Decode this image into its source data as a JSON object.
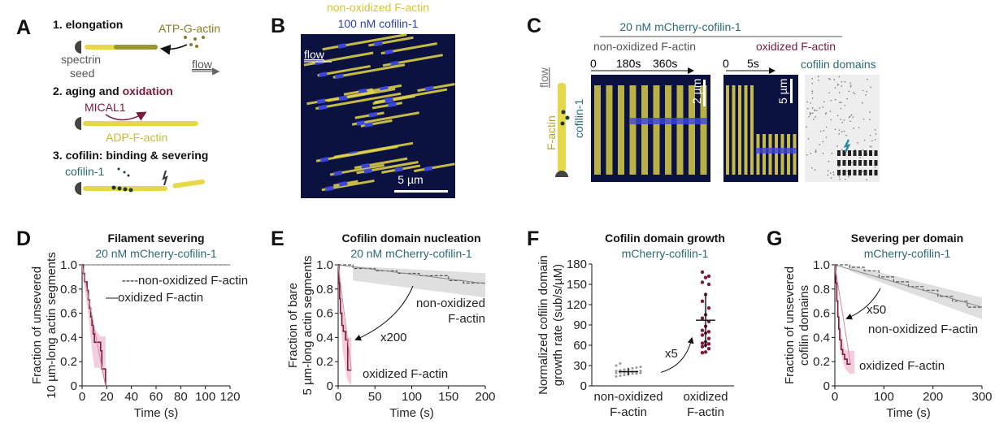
{
  "colors": {
    "yellow": "#e6d84a",
    "olive": "#8a7d1e",
    "oxidized": "#7a1a3c",
    "oxidizedBand": "#f2c4d6",
    "teal": "#2b6a73",
    "gray": "#666666",
    "grayBand": "#d9d9d9",
    "blue": "#3b47d6",
    "kymoBg": "#0b1240"
  },
  "panels": {
    "A": {
      "label": "A",
      "step1": "1. elongation",
      "atp": "ATP-G-actin",
      "spectrin": "spectrin",
      "seed": "seed",
      "flow": "flow",
      "step2a": "2. aging and ",
      "step2b": "oxidation",
      "mical": "MICAL1",
      "adp": "ADP-F-actin",
      "step3": "3. cofilin: binding & severing",
      "cofilin": "cofilin-1"
    },
    "B": {
      "label": "B",
      "title1": "non-oxidized F-actin",
      "title2": "100 nM cofilin-1",
      "flow": "flow",
      "scale": "5 µm"
    },
    "C": {
      "label": "C",
      "title": "20 nM mCherry-cofilin-1",
      "nonox": "non-oxidized F-actin",
      "ox": "oxidized F-actin",
      "flow": "flow",
      "factin": "F-actin",
      "cofilin": "cofilin-1",
      "t0": "0",
      "t180": "180s",
      "t360": "360s",
      "scale1": "2 µm",
      "t0b": "0",
      "t5": "5s",
      "scale2": "5 µm",
      "domains": "cofilin domains"
    }
  },
  "chart_data": [
    {
      "id": "D",
      "panel_label": "D",
      "type": "line",
      "title": "Filament severing",
      "subtitle": "20 nM mCherry-cofilin-1",
      "xlabel": "Time (s)",
      "ylabel": [
        "Fraction of unsevered",
        "10 µm-long actin segments"
      ],
      "xlim": [
        0,
        120
      ],
      "ylim": [
        0,
        1
      ],
      "xticks": [
        0,
        20,
        40,
        60,
        80,
        100,
        120
      ],
      "yticks": [
        0,
        0.2,
        0.4,
        0.6,
        0.8,
        1.0
      ],
      "ytick_labels": [
        "0",
        "0.2",
        "0.4",
        "0.6",
        "0.8",
        "1.0"
      ],
      "legend": [
        "----non-oxidized F-actin",
        "—oxidized F-actin"
      ],
      "legend_position": "top-right",
      "series": [
        {
          "name": "non-oxidized F-actin",
          "style": "dashed",
          "x": [
            0,
            120
          ],
          "y": [
            1,
            1
          ]
        },
        {
          "name": "oxidized F-actin",
          "style": "step",
          "x": [
            0,
            1,
            2,
            4,
            5,
            6,
            7,
            8,
            9,
            10,
            15,
            16,
            19
          ],
          "y": [
            1,
            0.93,
            0.86,
            0.79,
            0.71,
            0.64,
            0.57,
            0.5,
            0.43,
            0.36,
            0.29,
            0.14,
            0
          ],
          "band_x": [
            0,
            5,
            8,
            10,
            15,
            19
          ],
          "band_lo": [
            0.95,
            0.6,
            0.3,
            0.15,
            0.15,
            0
          ],
          "band_hi": [
            1,
            0.8,
            0.6,
            0.47,
            0.41,
            0.41
          ]
        }
      ]
    },
    {
      "id": "E",
      "panel_label": "E",
      "type": "line",
      "title": "Cofilin domain nucleation",
      "subtitle": "20 nM mCherry-cofilin-1",
      "xlabel": "Time (s)",
      "ylabel": [
        "Fraction of bare",
        "5 µm-long actin segments"
      ],
      "xlim": [
        0,
        200
      ],
      "ylim": [
        0,
        1
      ],
      "xticks": [
        0,
        50,
        100,
        150,
        200
      ],
      "yticks": [
        0,
        0.2,
        0.4,
        0.6,
        0.8,
        1.0
      ],
      "ytick_labels": [
        "0",
        "0.2",
        "0.4",
        "0.6",
        "0.8",
        "1.0"
      ],
      "annotations": [
        "non-oxidized",
        "F-actin",
        "x200",
        "oxidized F-actin"
      ],
      "series": [
        {
          "name": "non-oxidized F-actin",
          "style": "step",
          "x": [
            0,
            20,
            50,
            80,
            110,
            150,
            170,
            200
          ],
          "y": [
            1,
            0.97,
            0.95,
            0.93,
            0.91,
            0.87,
            0.85,
            0.845
          ],
          "band_x": [
            20,
            200
          ],
          "band_lo": [
            0.87,
            0.73
          ],
          "band_hi": [
            0.99,
            0.93
          ]
        },
        {
          "name": "oxidized F-actin",
          "style": "step",
          "x": [
            0,
            1,
            2,
            3,
            5,
            7,
            10,
            13,
            18
          ],
          "y": [
            1,
            0.85,
            0.72,
            0.6,
            0.5,
            0.45,
            0.38,
            0.13,
            0.13
          ],
          "band_x": [
            0,
            6,
            12,
            18
          ],
          "band_lo": [
            0.9,
            0.3,
            0.05,
            0
          ],
          "band_hi": [
            1,
            0.65,
            0.4,
            0.4
          ]
        }
      ]
    },
    {
      "id": "F",
      "panel_label": "F",
      "type": "scatter",
      "title": "Cofilin domain growth",
      "subtitle": "mCherry-cofilin-1",
      "ylabel": [
        "Normalized cofilin domain",
        "growth rate (sub/s/µM)"
      ],
      "ylim": [
        0,
        180
      ],
      "yticks": [
        0,
        30,
        60,
        90,
        120,
        150,
        180
      ],
      "categories": [
        [
          "non-oxidized",
          "F-actin"
        ],
        [
          "oxidized",
          "F-actin"
        ]
      ],
      "annotation": "x5",
      "series": [
        {
          "name": "non-oxidized F-actin",
          "mean": 21,
          "sd": 5,
          "values": [
            14,
            15,
            16,
            17,
            18,
            18,
            19,
            19,
            20,
            20,
            20,
            21,
            21,
            22,
            22,
            23,
            24,
            25,
            26,
            27,
            28,
            30,
            33
          ]
        },
        {
          "name": "oxidized F-actin",
          "mean": 97,
          "sd": 40,
          "values": [
            49,
            50,
            55,
            58,
            60,
            62,
            63,
            65,
            70,
            75,
            78,
            80,
            82,
            88,
            95,
            100,
            105,
            115,
            125,
            135,
            150,
            153,
            160,
            162,
            168
          ]
        }
      ]
    },
    {
      "id": "G",
      "panel_label": "G",
      "type": "line",
      "title": "Severing per domain",
      "subtitle": "mCherry-cofilin-1",
      "xlabel": "Time (s)",
      "ylabel": [
        "Fraction of unsevered",
        "cofilin domains"
      ],
      "xlim": [
        0,
        300
      ],
      "ylim": [
        0,
        1
      ],
      "xticks": [
        0,
        100,
        200,
        300
      ],
      "yticks": [
        0,
        0.2,
        0.4,
        0.6,
        0.8,
        1.0
      ],
      "ytick_labels": [
        "0",
        "0.2",
        "0.4",
        "0.6",
        "0.8",
        "1.0"
      ],
      "annotations": [
        "x50",
        "non-oxidized F-actin",
        "oxidized F-actin"
      ],
      "series": [
        {
          "name": "non-oxidized F-actin",
          "style": "step",
          "x": [
            0,
            30,
            60,
            90,
            120,
            150,
            180,
            210,
            240,
            270,
            300
          ],
          "y": [
            1,
            0.98,
            0.95,
            0.9,
            0.86,
            0.82,
            0.79,
            0.74,
            0.7,
            0.65,
            0.65
          ],
          "band_x": [
            30,
            300
          ],
          "band_lo": [
            0.95,
            0.55
          ],
          "band_hi": [
            1,
            0.73
          ]
        },
        {
          "name": "oxidized F-actin",
          "style": "step",
          "x": [
            0,
            2,
            4,
            6,
            8,
            10,
            13,
            16,
            20,
            25,
            32
          ],
          "y": [
            1,
            0.85,
            0.7,
            0.57,
            0.47,
            0.38,
            0.3,
            0.26,
            0.22,
            0.18,
            0.18
          ],
          "band_x": [
            0,
            10,
            20,
            30,
            40
          ],
          "band_lo": [
            0.95,
            0.3,
            0.15,
            0.1,
            0.1
          ],
          "band_hi": [
            1,
            0.5,
            0.3,
            0.29,
            0.29
          ]
        }
      ]
    }
  ]
}
